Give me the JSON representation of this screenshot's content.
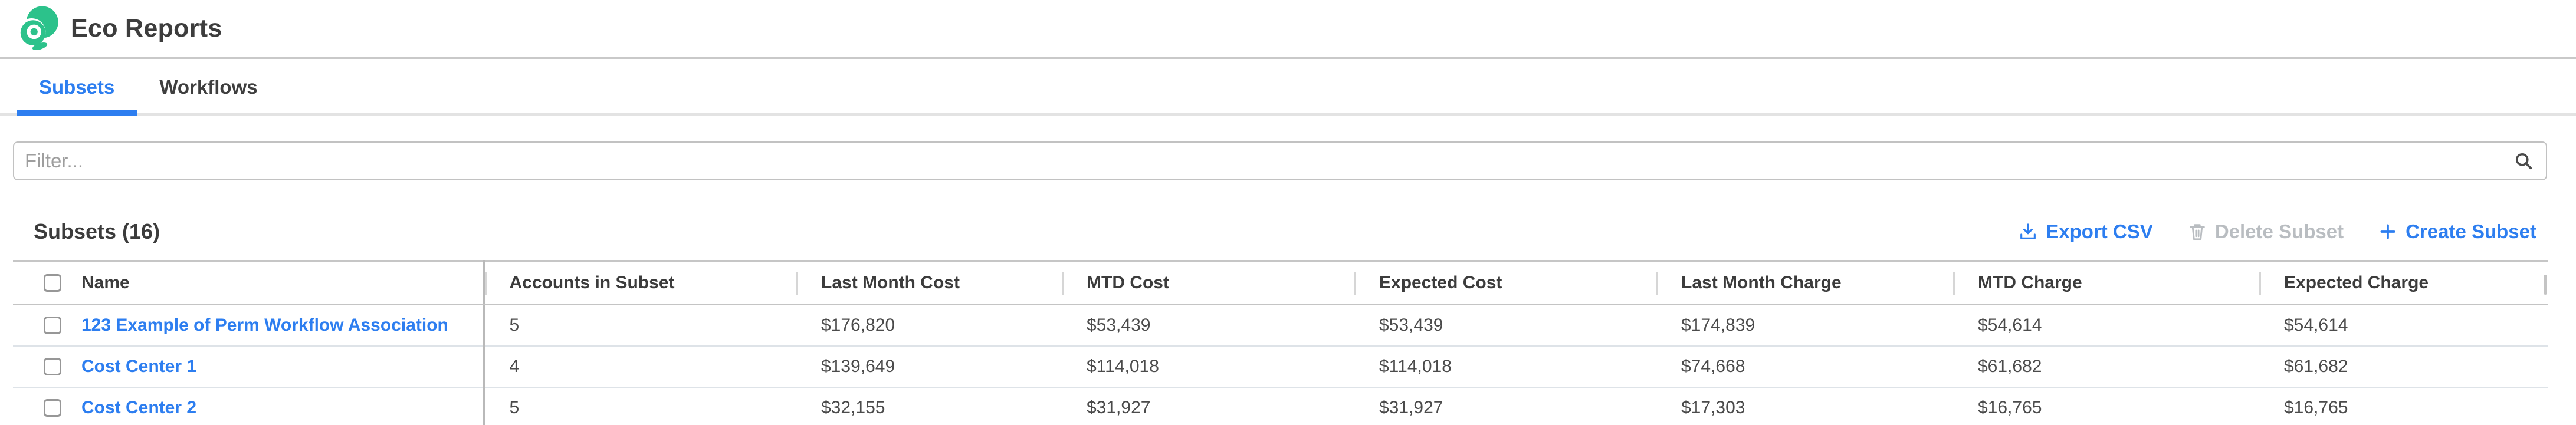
{
  "header": {
    "title": "Eco Reports"
  },
  "tabs": [
    {
      "label": "Subsets",
      "active": true
    },
    {
      "label": "Workflows",
      "active": false
    }
  ],
  "filter": {
    "placeholder": "Filter..."
  },
  "toolbar": {
    "heading": "Subsets (16)",
    "export_label": "Export CSV",
    "delete_label": "Delete Subset",
    "create_label": "Create Subset",
    "delete_disabled": true
  },
  "table": {
    "columns": [
      "Name",
      "Accounts in Subset",
      "Last Month Cost",
      "MTD Cost",
      "Expected Cost",
      "Last Month Charge",
      "MTD Charge",
      "Expected Charge"
    ],
    "rows": [
      {
        "name": "123 Example of Perm Workflow Association",
        "accounts": "5",
        "last_month_cost": "$176,820",
        "mtd_cost": "$53,439",
        "expected_cost": "$53,439",
        "last_month_charge": "$174,839",
        "mtd_charge": "$54,614",
        "expected_charge": "$54,614"
      },
      {
        "name": "Cost Center 1",
        "accounts": "4",
        "last_month_cost": "$139,649",
        "mtd_cost": "$114,018",
        "expected_cost": "$114,018",
        "last_month_charge": "$74,668",
        "mtd_charge": "$61,682",
        "expected_charge": "$61,682"
      },
      {
        "name": "Cost Center 2",
        "accounts": "5",
        "last_month_cost": "$32,155",
        "mtd_cost": "$31,927",
        "expected_cost": "$31,927",
        "last_month_charge": "$17,303",
        "mtd_charge": "$16,765",
        "expected_charge": "$16,765"
      }
    ]
  },
  "icons": {
    "logo": "eco-swirl-logo",
    "search": "search-icon",
    "export": "download-icon",
    "delete": "trash-icon",
    "create": "plus-icon"
  },
  "colors": {
    "accent_blue": "#2d7ef0",
    "logo_green": "#2cc28b",
    "disabled_gray": "#b9bdc1",
    "row_separator": "#dee3e8"
  }
}
